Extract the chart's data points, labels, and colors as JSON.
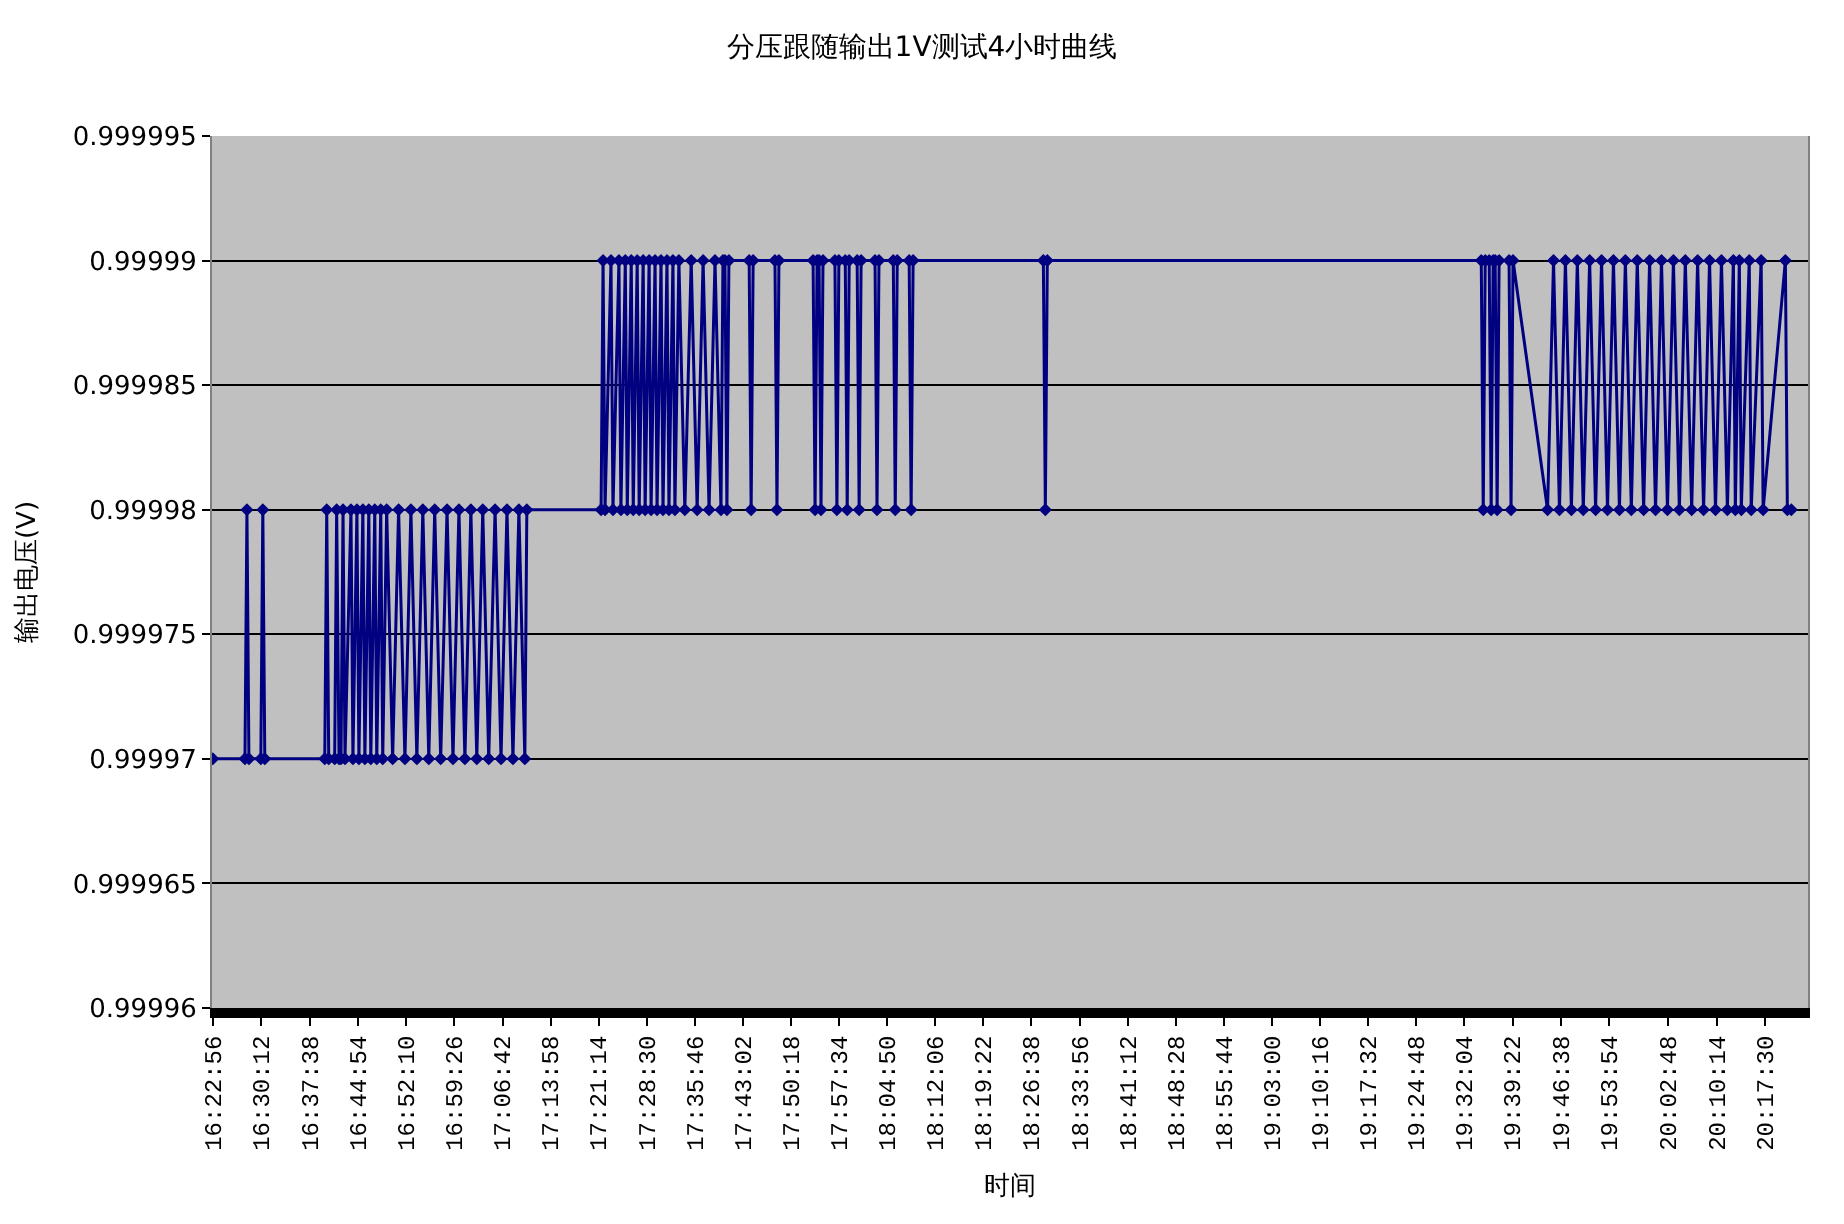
{
  "chart_data": {
    "type": "line",
    "title": "分压跟随输出1V测试4小时曲线",
    "xlabel": "时间",
    "ylabel": "输出电压(V)",
    "grid": "y",
    "marker": "diamond",
    "line_style": "solid",
    "xlim": [
      16.38,
      20.4
    ],
    "ylim": [
      0.99996,
      0.999995
    ],
    "yticks": [
      0.99996,
      0.999965,
      0.99997,
      0.999975,
      0.99998,
      0.999985,
      0.99999,
      0.999995
    ],
    "xticks": [
      {
        "value": 16.3822,
        "label": "16:22:56"
      },
      {
        "value": 16.5033,
        "label": "16:30:12"
      },
      {
        "value": 16.6272,
        "label": "16:37:38"
      },
      {
        "value": 16.7483,
        "label": "16:44:54"
      },
      {
        "value": 16.8694,
        "label": "16:52:10"
      },
      {
        "value": 16.9906,
        "label": "16:59:26"
      },
      {
        "value": 17.1117,
        "label": "17:06:42"
      },
      {
        "value": 17.2328,
        "label": "17:13:58"
      },
      {
        "value": 17.3539,
        "label": "17:21:14"
      },
      {
        "value": 17.475,
        "label": "17:28:30"
      },
      {
        "value": 17.5961,
        "label": "17:35:46"
      },
      {
        "value": 17.7172,
        "label": "17:43:02"
      },
      {
        "value": 17.8383,
        "label": "17:50:18"
      },
      {
        "value": 17.9594,
        "label": "17:57:34"
      },
      {
        "value": 18.0806,
        "label": "18:04:50"
      },
      {
        "value": 18.2017,
        "label": "18:12:06"
      },
      {
        "value": 18.3228,
        "label": "18:19:22"
      },
      {
        "value": 18.4439,
        "label": "18:26:38"
      },
      {
        "value": 18.5656,
        "label": "18:33:56"
      },
      {
        "value": 18.6867,
        "label": "18:41:12"
      },
      {
        "value": 18.8078,
        "label": "18:48:28"
      },
      {
        "value": 18.9289,
        "label": "18:55:44"
      },
      {
        "value": 19.05,
        "label": "19:03:00"
      },
      {
        "value": 19.1711,
        "label": "19:10:16"
      },
      {
        "value": 19.2922,
        "label": "19:17:32"
      },
      {
        "value": 19.4133,
        "label": "19:24:48"
      },
      {
        "value": 19.5344,
        "label": "19:32:04"
      },
      {
        "value": 19.6561,
        "label": "19:39:22"
      },
      {
        "value": 19.7772,
        "label": "19:46:38"
      },
      {
        "value": 19.8983,
        "label": "19:53:54"
      },
      {
        "value": 20.0467,
        "label": "20:02:48"
      },
      {
        "value": 20.1706,
        "label": "20:10:14"
      },
      {
        "value": 20.2917,
        "label": "20:17:30"
      }
    ],
    "series": [
      {
        "color": "#000080",
        "x": [
          16.382,
          16.463,
          16.468,
          16.473,
          16.503,
          16.508,
          16.513,
          16.664,
          16.669,
          16.674,
          16.689,
          16.694,
          16.7,
          16.705,
          16.71,
          16.715,
          16.73,
          16.735,
          16.745,
          16.75,
          16.76,
          16.765,
          16.775,
          16.78,
          16.79,
          16.795,
          16.805,
          16.81,
          16.82,
          16.835,
          16.85,
          16.866,
          16.881,
          16.896,
          16.911,
          16.926,
          16.941,
          16.956,
          16.972,
          16.987,
          17.002,
          17.017,
          17.032,
          17.047,
          17.062,
          17.077,
          17.093,
          17.108,
          17.123,
          17.138,
          17.153,
          17.168,
          17.173,
          17.36,
          17.365,
          17.37,
          17.385,
          17.39,
          17.405,
          17.41,
          17.421,
          17.426,
          17.436,
          17.441,
          17.451,
          17.456,
          17.466,
          17.471,
          17.481,
          17.486,
          17.496,
          17.501,
          17.511,
          17.516,
          17.526,
          17.531,
          17.541,
          17.546,
          17.556,
          17.571,
          17.587,
          17.602,
          17.617,
          17.632,
          17.647,
          17.662,
          17.667,
          17.672,
          17.677,
          17.682,
          17.733,
          17.738,
          17.743,
          17.798,
          17.803,
          17.808,
          17.894,
          17.899,
          17.904,
          17.909,
          17.914,
          17.919,
          17.949,
          17.954,
          17.959,
          17.975,
          17.98,
          17.985,
          18.005,
          18.01,
          18.015,
          18.05,
          18.055,
          18.06,
          18.096,
          18.101,
          18.106,
          18.136,
          18.141,
          18.146,
          18.474,
          18.479,
          18.484,
          19.577,
          19.582,
          19.587,
          19.597,
          19.602,
          19.607,
          19.612,
          19.617,
          19.622,
          19.647,
          19.652,
          19.657,
          19.744,
          19.759,
          19.774,
          19.789,
          19.804,
          19.819,
          19.834,
          19.85,
          19.865,
          19.88,
          19.895,
          19.91,
          19.925,
          19.94,
          19.955,
          19.97,
          19.986,
          20.001,
          20.016,
          20.031,
          20.046,
          20.061,
          20.076,
          20.091,
          20.107,
          20.122,
          20.137,
          20.152,
          20.167,
          20.182,
          20.197,
          20.212,
          20.217,
          20.227,
          20.232,
          20.252,
          20.257,
          20.282,
          20.287,
          20.343,
          20.348,
          20.358
        ],
        "values": [
          0.99997,
          0.99997,
          0.99998,
          0.99997,
          0.99997,
          0.99998,
          0.99997,
          0.99997,
          0.99998,
          0.99997,
          0.99997,
          0.99998,
          0.99997,
          0.99997,
          0.99998,
          0.99997,
          0.99998,
          0.99997,
          0.99998,
          0.99997,
          0.99998,
          0.99997,
          0.99998,
          0.99997,
          0.99998,
          0.99997,
          0.99998,
          0.99997,
          0.99998,
          0.99997,
          0.99998,
          0.99997,
          0.99998,
          0.99997,
          0.99998,
          0.99997,
          0.99998,
          0.99997,
          0.99998,
          0.99997,
          0.99998,
          0.99997,
          0.99998,
          0.99997,
          0.99998,
          0.99997,
          0.99998,
          0.99997,
          0.99998,
          0.99997,
          0.99998,
          0.99997,
          0.99998,
          0.99998,
          0.99999,
          0.99998,
          0.99999,
          0.99998,
          0.99999,
          0.99998,
          0.99999,
          0.99998,
          0.99999,
          0.99998,
          0.99999,
          0.99998,
          0.99999,
          0.99998,
          0.99999,
          0.99998,
          0.99999,
          0.99998,
          0.99999,
          0.99998,
          0.99999,
          0.99998,
          0.99999,
          0.99998,
          0.99999,
          0.99998,
          0.99999,
          0.99998,
          0.99999,
          0.99998,
          0.99999,
          0.99998,
          0.99999,
          0.99999,
          0.99998,
          0.99999,
          0.99999,
          0.99998,
          0.99999,
          0.99999,
          0.99998,
          0.99999,
          0.99999,
          0.99998,
          0.99999,
          0.99999,
          0.99998,
          0.99999,
          0.99999,
          0.99998,
          0.99999,
          0.99999,
          0.99998,
          0.99999,
          0.99999,
          0.99998,
          0.99999,
          0.99999,
          0.99998,
          0.99999,
          0.99999,
          0.99998,
          0.99999,
          0.99999,
          0.99998,
          0.99999,
          0.99999,
          0.99998,
          0.99999,
          0.99999,
          0.99998,
          0.99999,
          0.99999,
          0.99998,
          0.99999,
          0.99999,
          0.99998,
          0.99999,
          0.99999,
          0.99998,
          0.99999,
          0.99998,
          0.99999,
          0.99998,
          0.99999,
          0.99998,
          0.99999,
          0.99998,
          0.99999,
          0.99998,
          0.99999,
          0.99998,
          0.99999,
          0.99998,
          0.99999,
          0.99998,
          0.99999,
          0.99998,
          0.99999,
          0.99998,
          0.99999,
          0.99998,
          0.99999,
          0.99998,
          0.99999,
          0.99998,
          0.99999,
          0.99998,
          0.99999,
          0.99998,
          0.99999,
          0.99998,
          0.99999,
          0.99998,
          0.99999,
          0.99998,
          0.99999,
          0.99998,
          0.99999,
          0.99998,
          0.99999,
          0.99998,
          0.99998
        ]
      }
    ]
  }
}
